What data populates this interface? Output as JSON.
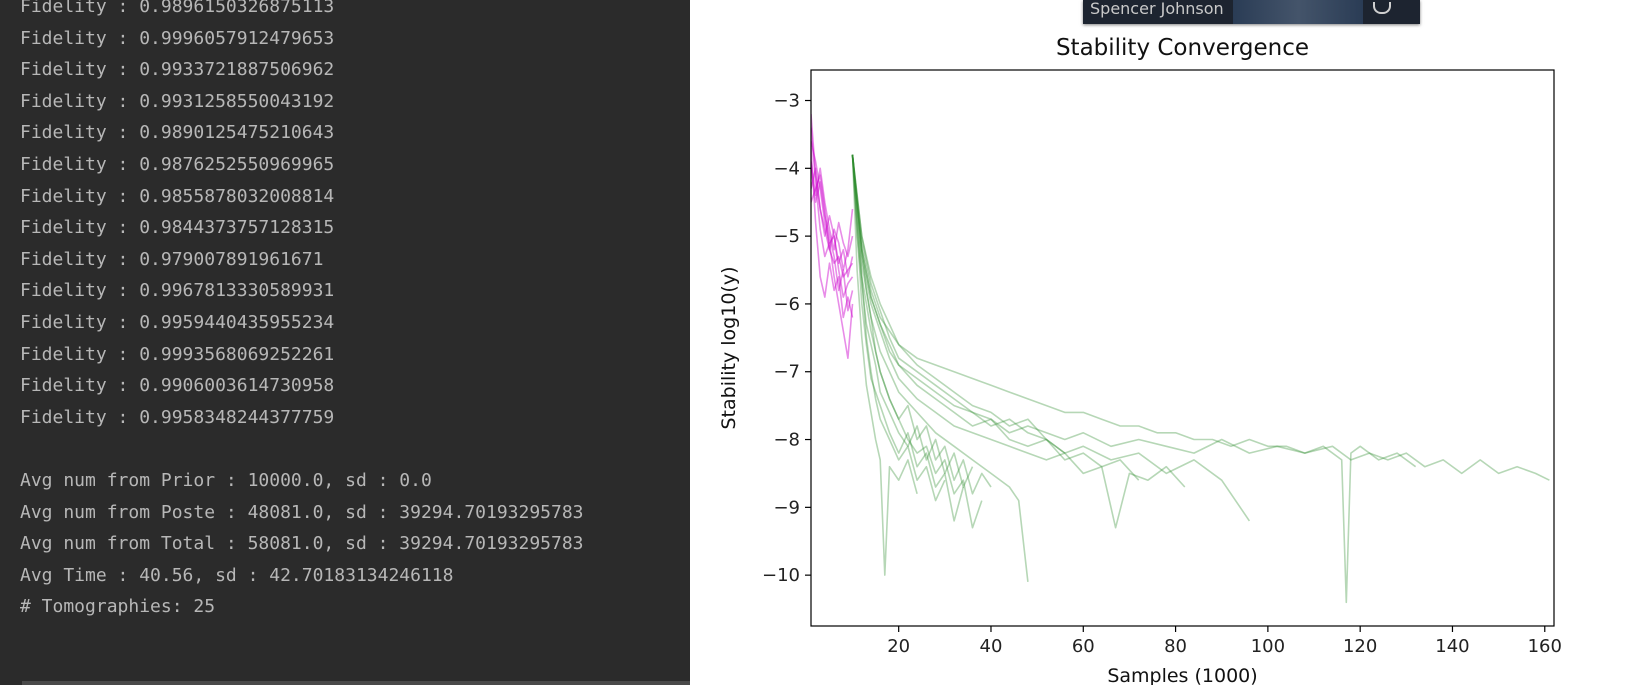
{
  "console": {
    "lines": [
      "Fidelity : 0.9896150326875113",
      "Fidelity : 0.9996057912479653",
      "Fidelity : 0.9933721887506962",
      "Fidelity : 0.9931258550043192",
      "Fidelity : 0.9890125475210643",
      "Fidelity : 0.9876252550969965",
      "Fidelity : 0.9855878032008814",
      "Fidelity : 0.9844373757128315",
      "Fidelity : 0.979007891961671",
      "Fidelity : 0.9967813330589931",
      "Fidelity : 0.9959440435955234",
      "Fidelity : 0.9993568069252261",
      "Fidelity : 0.9906003614730958",
      "Fidelity : 0.9958348244377759",
      "",
      "Avg num from Prior : 10000.0, sd : 0.0",
      "Avg num from Poste : 48081.0, sd : 39294.70193295783",
      "Avg num from Total : 58081.0, sd : 39294.70193295783",
      "Avg Time : 40.56, sd : 42.70183134246118",
      "# Tomographies: 25"
    ]
  },
  "video_tile": {
    "name": "Spencer Johnson"
  },
  "chart_data": {
    "type": "line",
    "title": "Stability Convergence",
    "xlabel": "Samples (1000)",
    "ylabel": "Stability log10(y)",
    "xlim": [
      1,
      162
    ],
    "ylim": [
      -10.75,
      -2.55
    ],
    "xticks": [
      20,
      40,
      60,
      80,
      100,
      120,
      140,
      160
    ],
    "yticks": [
      -3,
      -4,
      -5,
      -6,
      -7,
      -8,
      -9,
      -10
    ],
    "grid": false,
    "colors": {
      "prior": "#cc00cc",
      "posterior": "#2e8b2e"
    },
    "series": [
      {
        "phase": "prior",
        "x": [
          1,
          2,
          3,
          4,
          5,
          6,
          7,
          8,
          9,
          10
        ],
        "y": [
          -3.2,
          -4.1,
          -4.6,
          -4.9,
          -5.2,
          -5.4,
          -5.3,
          -5.6,
          -5.5,
          -5.4
        ]
      },
      {
        "phase": "prior",
        "x": [
          1,
          2,
          3,
          4,
          5,
          6,
          7,
          8,
          9,
          10
        ],
        "y": [
          -3.6,
          -3.9,
          -4.3,
          -4.8,
          -5.1,
          -5.0,
          -5.5,
          -5.9,
          -5.7,
          -5.6
        ]
      },
      {
        "phase": "prior",
        "x": [
          1,
          2,
          3,
          4,
          5,
          6,
          7,
          8,
          9,
          10
        ],
        "y": [
          -4.0,
          -4.5,
          -4.2,
          -4.7,
          -5.0,
          -5.3,
          -5.8,
          -5.5,
          -6.1,
          -5.8
        ]
      },
      {
        "phase": "prior",
        "x": [
          1,
          2,
          3,
          4,
          5,
          6,
          7,
          8,
          9,
          10
        ],
        "y": [
          -3.4,
          -4.2,
          -4.9,
          -5.3,
          -5.1,
          -5.6,
          -6.0,
          -6.4,
          -6.8,
          -6.0
        ]
      },
      {
        "phase": "prior",
        "x": [
          1,
          2,
          3,
          4,
          5,
          6,
          7,
          8,
          9,
          10
        ],
        "y": [
          -3.9,
          -4.4,
          -4.0,
          -4.5,
          -4.9,
          -5.2,
          -4.8,
          -5.1,
          -5.3,
          -5.0
        ]
      },
      {
        "phase": "prior",
        "x": [
          1,
          2,
          3,
          4,
          5,
          6,
          7,
          8,
          9,
          10
        ],
        "y": [
          -4.3,
          -4.0,
          -4.6,
          -5.0,
          -4.7,
          -5.0,
          -5.4,
          -5.2,
          -5.6,
          -5.3
        ]
      },
      {
        "phase": "prior",
        "x": [
          1,
          2,
          3,
          4,
          5,
          6,
          7,
          8,
          9,
          10
        ],
        "y": [
          -3.7,
          -4.8,
          -5.6,
          -5.9,
          -5.4,
          -5.8,
          -5.6,
          -6.2,
          -5.9,
          -6.2
        ]
      },
      {
        "phase": "prior",
        "x": [
          1,
          2,
          3,
          4,
          5,
          6,
          7,
          8,
          9,
          10
        ],
        "y": [
          -4.5,
          -4.3,
          -4.1,
          -4.6,
          -5.2,
          -4.9,
          -5.1,
          -5.5,
          -5.2,
          -4.6
        ]
      },
      {
        "phase": "posterior",
        "x": [
          10,
          11,
          12,
          13,
          14,
          15,
          16,
          18,
          20,
          22,
          24,
          26,
          28,
          30,
          32,
          34,
          36
        ],
        "y": [
          -3.8,
          -5.0,
          -5.7,
          -6.3,
          -6.6,
          -6.9,
          -7.3,
          -7.6,
          -7.9,
          -8.1,
          -7.8,
          -8.3,
          -8.0,
          -8.5,
          -8.2,
          -8.7,
          -8.4
        ]
      },
      {
        "phase": "posterior",
        "x": [
          10,
          11,
          12,
          13,
          14,
          15,
          16,
          18,
          20,
          22,
          24,
          26,
          28,
          30
        ],
        "y": [
          -3.8,
          -4.8,
          -5.6,
          -6.5,
          -7.0,
          -7.4,
          -7.7,
          -8.0,
          -8.3,
          -8.1,
          -8.6,
          -8.4,
          -8.9,
          -8.6
        ]
      },
      {
        "phase": "posterior",
        "x": [
          10,
          11,
          12,
          13,
          14,
          15,
          16,
          18,
          20,
          22,
          24,
          26,
          28,
          30,
          32,
          34,
          36,
          38,
          40
        ],
        "y": [
          -3.8,
          -4.5,
          -5.2,
          -5.8,
          -6.2,
          -6.7,
          -7.0,
          -7.4,
          -7.7,
          -7.5,
          -8.0,
          -7.8,
          -8.3,
          -8.1,
          -8.6,
          -8.3,
          -8.8,
          -8.5,
          -8.7
        ]
      },
      {
        "phase": "posterior",
        "x": [
          10,
          11,
          12,
          13,
          14,
          15,
          16,
          17,
          18,
          20,
          22,
          24
        ],
        "y": [
          -3.8,
          -5.5,
          -6.5,
          -7.2,
          -7.6,
          -8.0,
          -8.3,
          -10.0,
          -8.4,
          -8.6,
          -8.3,
          -8.8
        ]
      },
      {
        "phase": "posterior",
        "x": [
          10,
          11,
          12,
          13,
          14,
          16,
          18,
          20,
          22,
          24,
          26,
          28,
          30,
          32,
          34
        ],
        "y": [
          -3.8,
          -4.9,
          -6.0,
          -6.6,
          -7.1,
          -7.5,
          -7.9,
          -8.2,
          -7.9,
          -8.4,
          -8.2,
          -8.7,
          -8.5,
          -9.2,
          -8.7
        ]
      },
      {
        "phase": "posterior",
        "x": [
          10,
          12,
          14,
          16,
          18,
          20,
          24,
          28,
          32,
          36,
          40,
          44,
          48,
          52,
          56,
          60,
          66,
          72,
          78,
          84,
          90,
          96,
          102,
          108,
          114,
          118,
          122,
          126,
          130,
          134,
          138,
          142,
          146,
          150,
          154,
          158,
          161
        ],
        "y": [
          -3.8,
          -5.2,
          -5.9,
          -6.3,
          -6.6,
          -6.9,
          -7.1,
          -7.3,
          -7.5,
          -7.6,
          -7.7,
          -7.9,
          -7.8,
          -7.9,
          -8.0,
          -7.9,
          -8.1,
          -8.0,
          -8.1,
          -8.2,
          -8.0,
          -8.2,
          -8.1,
          -8.2,
          -8.1,
          -8.3,
          -8.2,
          -8.3,
          -8.2,
          -8.4,
          -8.3,
          -8.5,
          -8.3,
          -8.5,
          -8.4,
          -8.5,
          -8.6
        ]
      },
      {
        "phase": "posterior",
        "x": [
          10,
          12,
          14,
          16,
          18,
          20,
          24,
          28,
          32,
          36,
          40,
          44,
          48,
          52,
          56,
          60,
          66,
          72,
          78,
          84,
          90,
          96
        ],
        "y": [
          -3.8,
          -5.0,
          -5.7,
          -6.1,
          -6.5,
          -6.8,
          -7.0,
          -7.2,
          -7.4,
          -7.6,
          -7.8,
          -7.7,
          -7.9,
          -8.0,
          -8.2,
          -8.1,
          -8.3,
          -8.2,
          -8.5,
          -8.3,
          -8.6,
          -9.2
        ]
      },
      {
        "phase": "posterior",
        "x": [
          10,
          12,
          14,
          16,
          18,
          20,
          24,
          28,
          32,
          36,
          40,
          44,
          48,
          52,
          56,
          60,
          64,
          68,
          72,
          76,
          80,
          84,
          88,
          92,
          96,
          100,
          104,
          108,
          112,
          116,
          117,
          118,
          120,
          124,
          128,
          132
        ],
        "y": [
          -3.8,
          -5.1,
          -5.8,
          -6.2,
          -6.4,
          -6.6,
          -6.8,
          -6.9,
          -7.0,
          -7.1,
          -7.2,
          -7.3,
          -7.4,
          -7.5,
          -7.6,
          -7.6,
          -7.7,
          -7.8,
          -7.8,
          -7.9,
          -7.9,
          -8.0,
          -8.0,
          -8.1,
          -8.0,
          -8.1,
          -8.1,
          -8.2,
          -8.1,
          -8.3,
          -10.4,
          -8.2,
          -8.1,
          -8.3,
          -8.2,
          -8.4
        ]
      },
      {
        "phase": "posterior",
        "x": [
          10,
          12,
          14,
          16,
          18,
          20,
          24,
          28,
          32,
          36,
          40,
          44,
          48,
          52,
          56,
          60,
          64,
          67,
          70,
          74,
          78,
          82
        ],
        "y": [
          -3.8,
          -5.3,
          -6.0,
          -6.4,
          -6.8,
          -7.1,
          -7.4,
          -7.6,
          -7.8,
          -7.9,
          -8.0,
          -8.1,
          -8.2,
          -8.3,
          -8.2,
          -8.5,
          -8.4,
          -9.3,
          -8.5,
          -8.6,
          -8.4,
          -8.7
        ]
      },
      {
        "phase": "posterior",
        "x": [
          10,
          12,
          14,
          16,
          18,
          20,
          24,
          28,
          32,
          36,
          40,
          44,
          46,
          48
        ],
        "y": [
          -3.8,
          -5.4,
          -6.2,
          -6.7,
          -7.0,
          -7.3,
          -7.6,
          -7.9,
          -8.1,
          -8.3,
          -8.5,
          -8.7,
          -8.9,
          -10.1
        ]
      },
      {
        "phase": "posterior",
        "x": [
          10,
          12,
          14,
          16,
          18,
          20,
          24,
          28,
          32,
          36,
          40,
          44,
          48,
          52,
          56,
          60,
          64,
          68,
          72
        ],
        "y": [
          -3.8,
          -5.2,
          -5.9,
          -6.3,
          -6.7,
          -6.9,
          -7.2,
          -7.4,
          -7.6,
          -7.8,
          -7.7,
          -8.0,
          -8.1,
          -8.0,
          -8.3,
          -8.2,
          -8.4,
          -8.3,
          -8.6
        ]
      },
      {
        "phase": "posterior",
        "x": [
          10,
          12,
          14,
          16,
          18,
          20,
          22,
          24,
          26,
          28,
          30,
          32,
          34,
          36,
          38
        ],
        "y": [
          -3.8,
          -5.6,
          -6.4,
          -7.0,
          -7.4,
          -7.7,
          -8.0,
          -8.2,
          -8.1,
          -8.5,
          -8.3,
          -8.8,
          -8.6,
          -9.3,
          -8.9
        ]
      },
      {
        "phase": "posterior",
        "x": [
          10,
          12,
          14,
          16,
          18,
          20,
          24,
          28,
          32,
          36,
          40,
          44,
          48,
          52,
          56
        ],
        "y": [
          -3.8,
          -5.0,
          -5.6,
          -6.0,
          -6.3,
          -6.6,
          -6.9,
          -7.1,
          -7.3,
          -7.5,
          -7.6,
          -7.8,
          -7.7,
          -8.0,
          -8.2
        ]
      }
    ]
  }
}
